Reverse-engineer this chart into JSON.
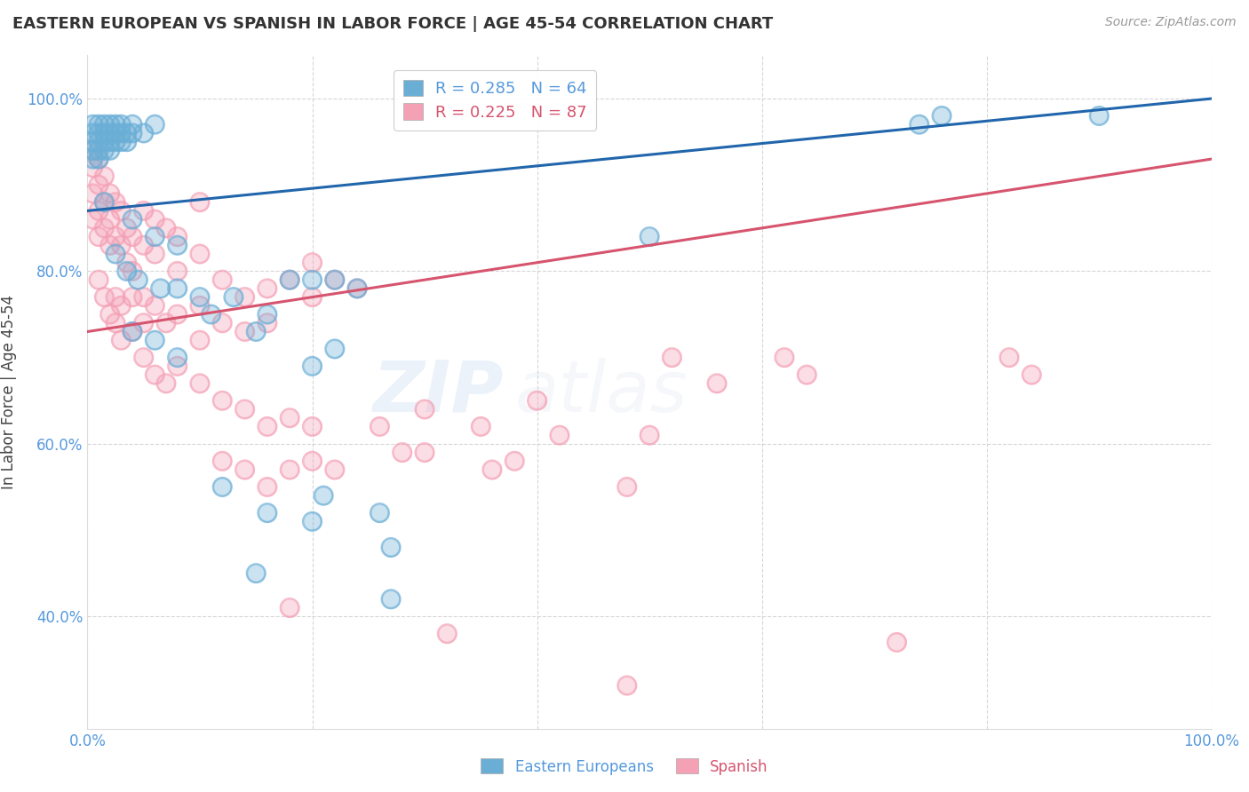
{
  "title": "EASTERN EUROPEAN VS SPANISH IN LABOR FORCE | AGE 45-54 CORRELATION CHART",
  "source_text": "Source: ZipAtlas.com",
  "ylabel": "In Labor Force | Age 45-54",
  "xlim": [
    0.0,
    1.0
  ],
  "ylim": [
    0.27,
    1.05
  ],
  "x_ticks": [
    0.0,
    0.2,
    0.4,
    0.6,
    0.8,
    1.0
  ],
  "x_tick_labels": [
    "0.0%",
    "",
    "",
    "",
    "",
    "100.0%"
  ],
  "y_ticks": [
    0.4,
    0.6,
    0.8,
    1.0
  ],
  "y_tick_labels": [
    "40.0%",
    "60.0%",
    "80.0%",
    "100.0%"
  ],
  "legend_blue_label": "Eastern Europeans",
  "legend_pink_label": "Spanish",
  "blue_R": 0.285,
  "blue_N": 64,
  "pink_R": 0.225,
  "pink_N": 87,
  "blue_color": "#6aaed6",
  "pink_color": "#f4a0b5",
  "blue_line_color": "#2166ac",
  "pink_line_color": "#d6546e",
  "blue_scatter": [
    [
      0.005,
      0.97
    ],
    [
      0.005,
      0.96
    ],
    [
      0.005,
      0.95
    ],
    [
      0.005,
      0.94
    ],
    [
      0.005,
      0.93
    ],
    [
      0.01,
      0.97
    ],
    [
      0.01,
      0.96
    ],
    [
      0.01,
      0.95
    ],
    [
      0.01,
      0.94
    ],
    [
      0.01,
      0.93
    ],
    [
      0.015,
      0.97
    ],
    [
      0.015,
      0.96
    ],
    [
      0.015,
      0.95
    ],
    [
      0.015,
      0.94
    ],
    [
      0.02,
      0.97
    ],
    [
      0.02,
      0.96
    ],
    [
      0.02,
      0.95
    ],
    [
      0.02,
      0.94
    ],
    [
      0.025,
      0.97
    ],
    [
      0.025,
      0.96
    ],
    [
      0.025,
      0.95
    ],
    [
      0.03,
      0.97
    ],
    [
      0.03,
      0.96
    ],
    [
      0.03,
      0.95
    ],
    [
      0.035,
      0.96
    ],
    [
      0.035,
      0.95
    ],
    [
      0.04,
      0.97
    ],
    [
      0.04,
      0.96
    ],
    [
      0.05,
      0.96
    ],
    [
      0.06,
      0.97
    ],
    [
      0.015,
      0.88
    ],
    [
      0.04,
      0.86
    ],
    [
      0.06,
      0.84
    ],
    [
      0.08,
      0.83
    ],
    [
      0.025,
      0.82
    ],
    [
      0.035,
      0.8
    ],
    [
      0.045,
      0.79
    ],
    [
      0.065,
      0.78
    ],
    [
      0.08,
      0.78
    ],
    [
      0.1,
      0.77
    ],
    [
      0.11,
      0.75
    ],
    [
      0.13,
      0.77
    ],
    [
      0.15,
      0.73
    ],
    [
      0.16,
      0.75
    ],
    [
      0.18,
      0.79
    ],
    [
      0.2,
      0.79
    ],
    [
      0.22,
      0.79
    ],
    [
      0.24,
      0.78
    ],
    [
      0.04,
      0.73
    ],
    [
      0.06,
      0.72
    ],
    [
      0.08,
      0.7
    ],
    [
      0.2,
      0.69
    ],
    [
      0.22,
      0.71
    ],
    [
      0.12,
      0.55
    ],
    [
      0.16,
      0.52
    ],
    [
      0.2,
      0.51
    ],
    [
      0.21,
      0.54
    ],
    [
      0.26,
      0.52
    ],
    [
      0.27,
      0.48
    ],
    [
      0.15,
      0.45
    ],
    [
      0.27,
      0.42
    ],
    [
      0.5,
      0.84
    ],
    [
      0.74,
      0.97
    ],
    [
      0.76,
      0.98
    ],
    [
      0.9,
      0.98
    ]
  ],
  "pink_scatter": [
    [
      0.005,
      0.94
    ],
    [
      0.005,
      0.92
    ],
    [
      0.005,
      0.89
    ],
    [
      0.005,
      0.86
    ],
    [
      0.01,
      0.93
    ],
    [
      0.01,
      0.9
    ],
    [
      0.01,
      0.87
    ],
    [
      0.01,
      0.84
    ],
    [
      0.015,
      0.91
    ],
    [
      0.015,
      0.88
    ],
    [
      0.015,
      0.85
    ],
    [
      0.02,
      0.89
    ],
    [
      0.02,
      0.86
    ],
    [
      0.02,
      0.83
    ],
    [
      0.025,
      0.88
    ],
    [
      0.025,
      0.84
    ],
    [
      0.03,
      0.87
    ],
    [
      0.03,
      0.83
    ],
    [
      0.035,
      0.85
    ],
    [
      0.035,
      0.81
    ],
    [
      0.04,
      0.84
    ],
    [
      0.04,
      0.8
    ],
    [
      0.05,
      0.87
    ],
    [
      0.05,
      0.83
    ],
    [
      0.06,
      0.86
    ],
    [
      0.06,
      0.82
    ],
    [
      0.07,
      0.85
    ],
    [
      0.08,
      0.84
    ],
    [
      0.08,
      0.8
    ],
    [
      0.1,
      0.88
    ],
    [
      0.1,
      0.82
    ],
    [
      0.01,
      0.79
    ],
    [
      0.015,
      0.77
    ],
    [
      0.02,
      0.75
    ],
    [
      0.025,
      0.77
    ],
    [
      0.025,
      0.74
    ],
    [
      0.03,
      0.76
    ],
    [
      0.03,
      0.72
    ],
    [
      0.04,
      0.77
    ],
    [
      0.04,
      0.73
    ],
    [
      0.05,
      0.77
    ],
    [
      0.05,
      0.74
    ],
    [
      0.06,
      0.76
    ],
    [
      0.07,
      0.74
    ],
    [
      0.08,
      0.75
    ],
    [
      0.1,
      0.76
    ],
    [
      0.1,
      0.72
    ],
    [
      0.12,
      0.79
    ],
    [
      0.12,
      0.74
    ],
    [
      0.14,
      0.77
    ],
    [
      0.14,
      0.73
    ],
    [
      0.16,
      0.78
    ],
    [
      0.16,
      0.74
    ],
    [
      0.18,
      0.79
    ],
    [
      0.2,
      0.81
    ],
    [
      0.2,
      0.77
    ],
    [
      0.22,
      0.79
    ],
    [
      0.24,
      0.78
    ],
    [
      0.05,
      0.7
    ],
    [
      0.06,
      0.68
    ],
    [
      0.07,
      0.67
    ],
    [
      0.08,
      0.69
    ],
    [
      0.1,
      0.67
    ],
    [
      0.12,
      0.65
    ],
    [
      0.14,
      0.64
    ],
    [
      0.16,
      0.62
    ],
    [
      0.18,
      0.63
    ],
    [
      0.2,
      0.62
    ],
    [
      0.12,
      0.58
    ],
    [
      0.14,
      0.57
    ],
    [
      0.16,
      0.55
    ],
    [
      0.18,
      0.57
    ],
    [
      0.2,
      0.58
    ],
    [
      0.22,
      0.57
    ],
    [
      0.26,
      0.62
    ],
    [
      0.28,
      0.59
    ],
    [
      0.3,
      0.64
    ],
    [
      0.3,
      0.59
    ],
    [
      0.35,
      0.62
    ],
    [
      0.36,
      0.57
    ],
    [
      0.4,
      0.65
    ],
    [
      0.38,
      0.58
    ],
    [
      0.42,
      0.61
    ],
    [
      0.48,
      0.55
    ],
    [
      0.5,
      0.61
    ],
    [
      0.52,
      0.7
    ],
    [
      0.56,
      0.67
    ],
    [
      0.62,
      0.7
    ],
    [
      0.64,
      0.68
    ],
    [
      0.82,
      0.7
    ],
    [
      0.84,
      0.68
    ],
    [
      0.18,
      0.41
    ],
    [
      0.32,
      0.38
    ],
    [
      0.72,
      0.37
    ],
    [
      0.48,
      0.32
    ]
  ]
}
